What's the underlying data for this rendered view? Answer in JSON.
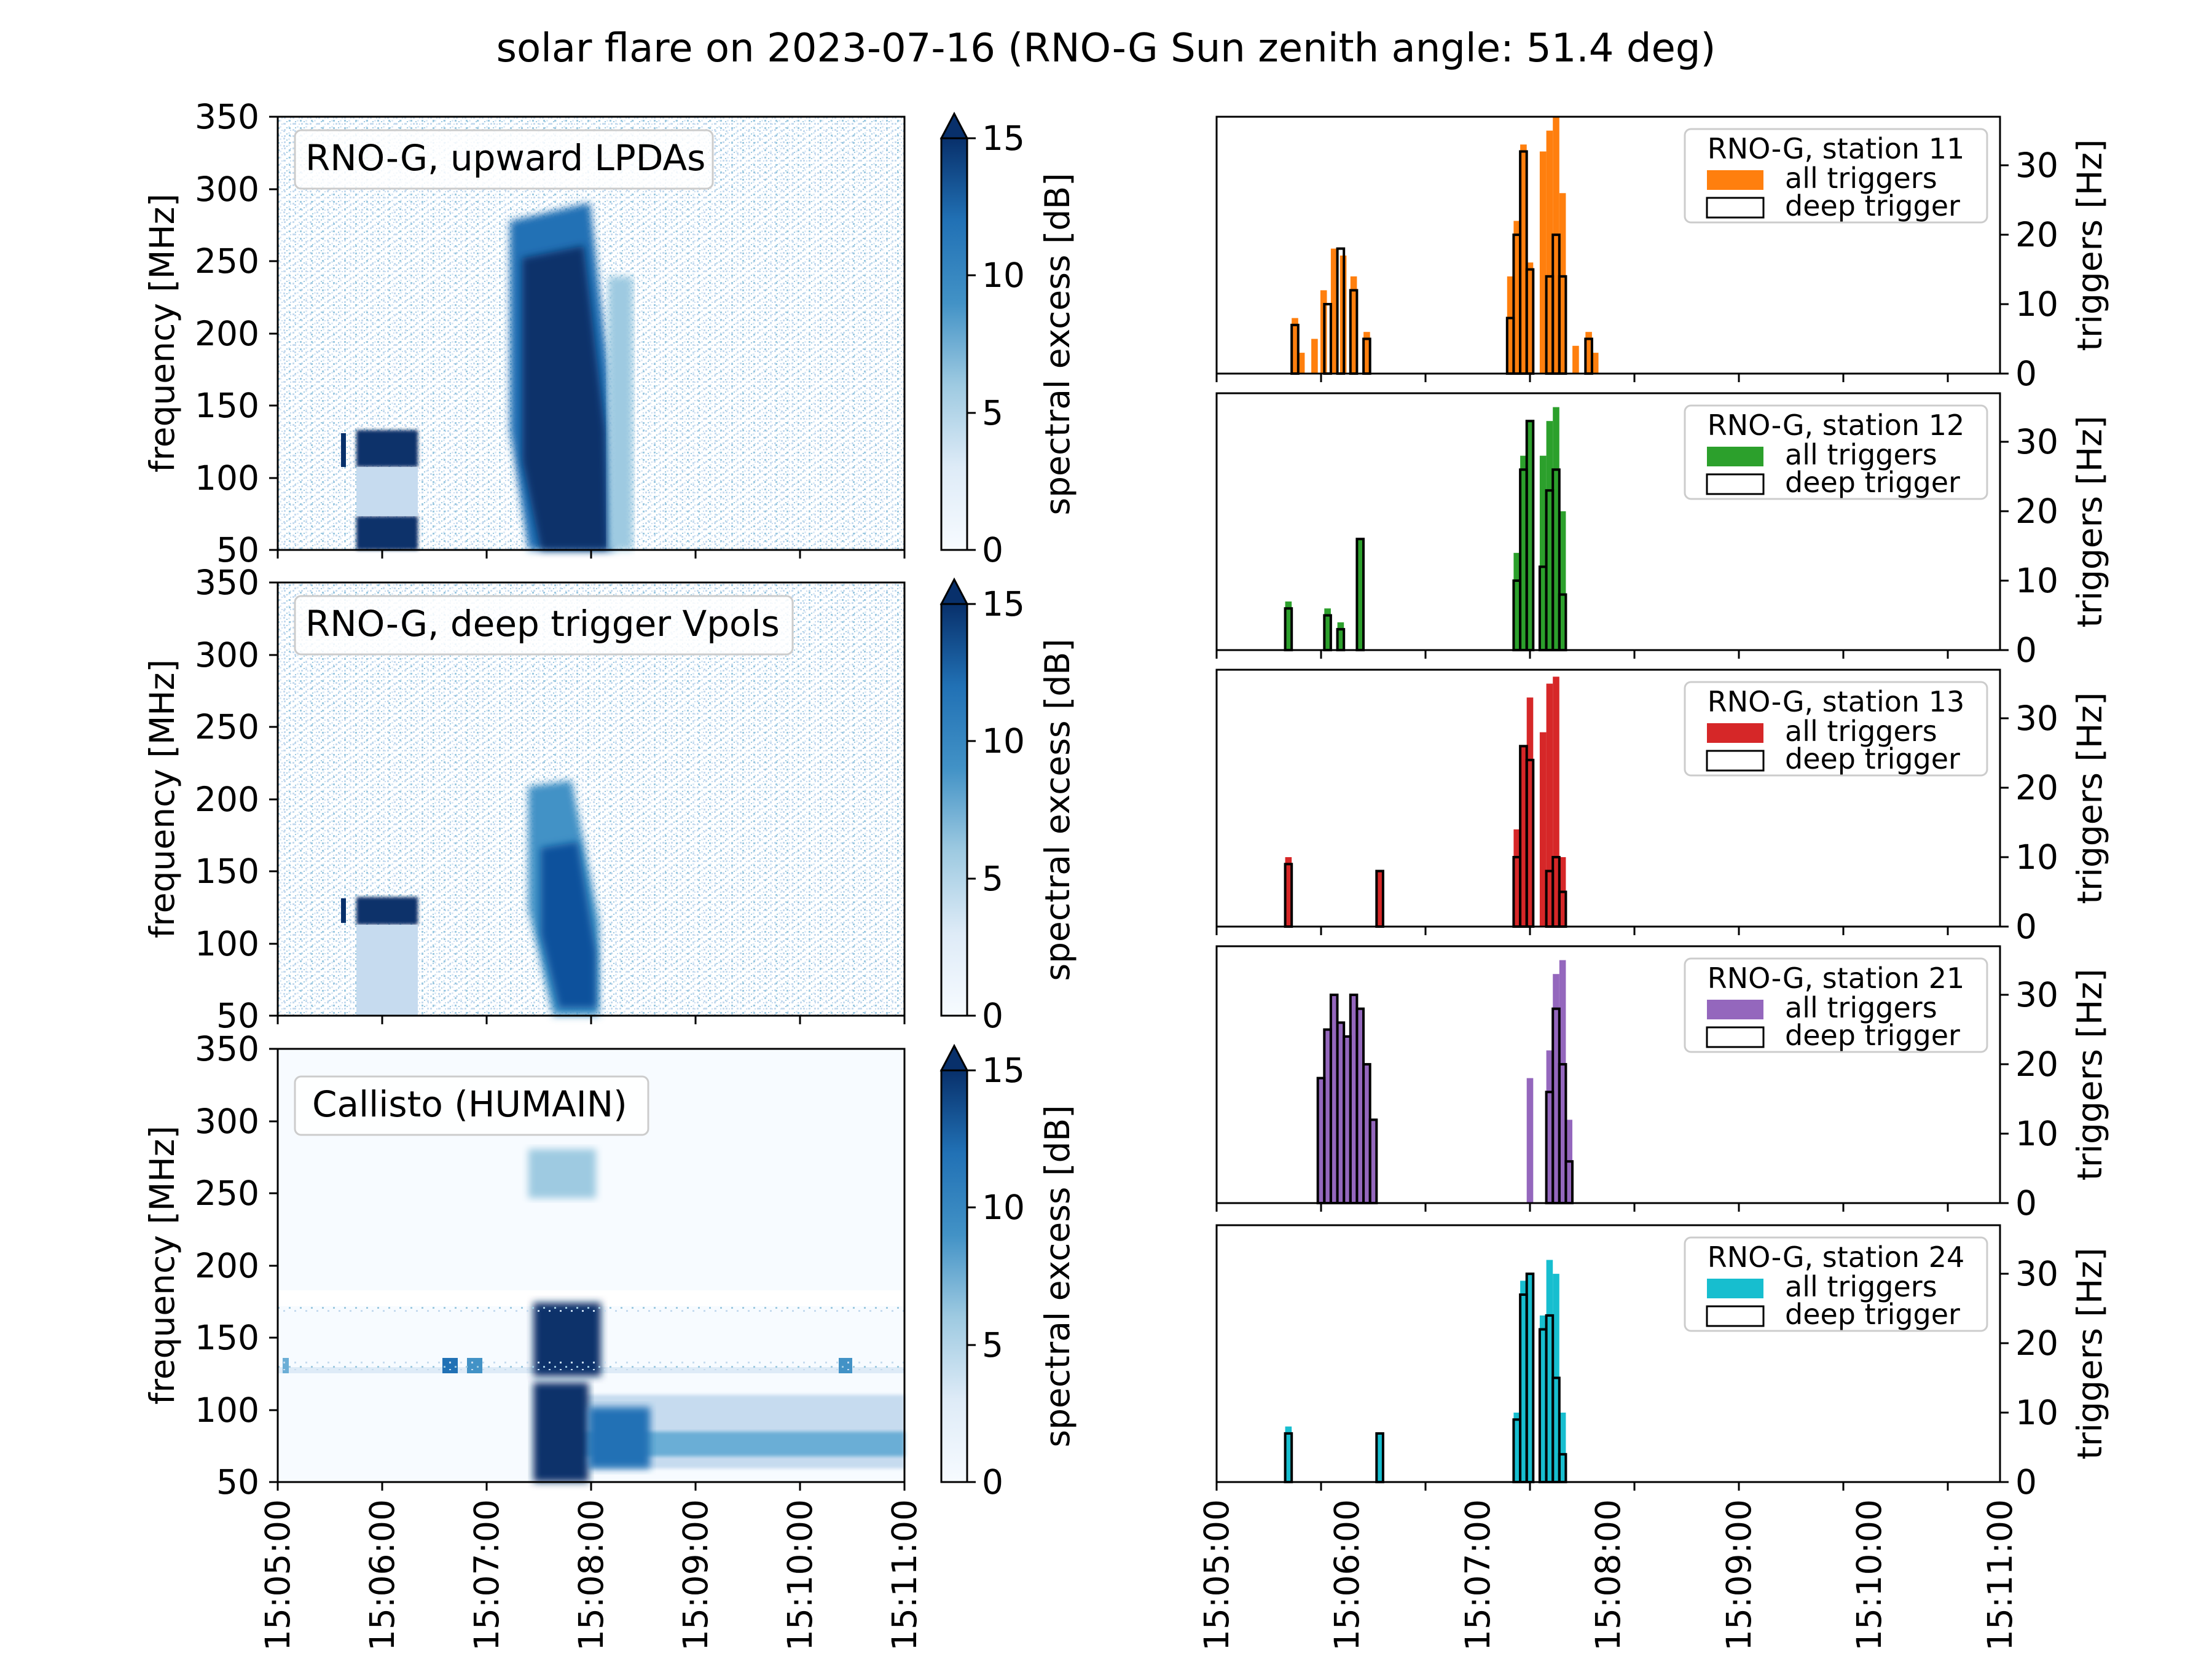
{
  "title": "solar flare on 2023-07-16 (RNO-G Sun zenith angle: 51.4 deg)",
  "colors": {
    "cmap_low": "#f7fbff",
    "cmap_high": "#08306b",
    "station_11": "#ff7f0e",
    "station_12": "#2ca02c",
    "station_13": "#d62728",
    "station_21": "#9467bd",
    "station_24": "#17becf",
    "deep": "#000000"
  },
  "chart_data": [
    {
      "type": "heatmap",
      "label": "RNO-G, upward LPDAs",
      "ylabel": "frequency [MHz]",
      "ylim": [
        50,
        350
      ],
      "y_ticks": [
        "50",
        "100",
        "150",
        "200",
        "250",
        "300",
        "350"
      ],
      "colorbar_label": "spectral excess [dB]",
      "colorbar_ticks": [
        "0",
        "5",
        "10",
        "15"
      ],
      "clim": [
        0,
        15
      ],
      "features": [
        {
          "time": "15:05:35-15:06:20",
          "freq_mhz": [
            110,
            135
          ],
          "excess_db": 15
        },
        {
          "time": "15:05:35-15:06:20",
          "freq_mhz": [
            50,
            70
          ],
          "excess_db": 14
        },
        {
          "time": "15:07:10-15:08:10",
          "freq_mhz": [
            50,
            280
          ],
          "excess_db": 15
        }
      ]
    },
    {
      "type": "heatmap",
      "label": "RNO-G, deep trigger Vpols",
      "ylabel": "frequency [MHz]",
      "ylim": [
        50,
        350
      ],
      "y_ticks": [
        "50",
        "100",
        "150",
        "200",
        "250",
        "300",
        "350"
      ],
      "colorbar_label": "spectral excess [dB]",
      "colorbar_ticks": [
        "0",
        "5",
        "10",
        "15"
      ],
      "clim": [
        0,
        15
      ],
      "features": [
        {
          "time": "15:05:35-15:06:20",
          "freq_mhz": [
            115,
            132
          ],
          "excess_db": 15
        },
        {
          "time": "15:07:15-15:08:05",
          "freq_mhz": [
            55,
            200
          ],
          "excess_db": 12
        }
      ]
    },
    {
      "type": "heatmap",
      "label": "Callisto (HUMAIN)",
      "ylabel": "frequency [MHz]",
      "ylim": [
        50,
        350
      ],
      "y_ticks": [
        "50",
        "100",
        "150",
        "200",
        "250",
        "300",
        "350"
      ],
      "colorbar_label": "spectral excess [dB]",
      "colorbar_ticks": [
        "0",
        "5",
        "10",
        "15"
      ],
      "clim": [
        0,
        15
      ],
      "x_ticks": [
        "15:05:00",
        "15:06:00",
        "15:07:00",
        "15:08:00",
        "15:09:00",
        "15:10:00",
        "15:11:00"
      ],
      "features": [
        {
          "time": "15:07:25-15:11:00",
          "freq_mhz": [
            55,
            110
          ],
          "excess_db": 15
        },
        {
          "time": "15:07:20-15:08:10",
          "freq_mhz": [
            120,
            170
          ],
          "excess_db": 15
        },
        {
          "time": "15:07:25-15:07:55",
          "freq_mhz": [
            240,
            275
          ],
          "excess_db": 6
        }
      ]
    },
    {
      "type": "bar",
      "label": "RNO-G, station 11",
      "series": [
        {
          "name": "all triggers",
          "color": "#ff7f0e",
          "bins": [
            [
              5.6,
              8
            ],
            [
              5.65,
              3
            ],
            [
              5.75,
              5
            ],
            [
              5.82,
              12
            ],
            [
              5.9,
              18
            ],
            [
              5.97,
              17
            ],
            [
              6.05,
              14
            ],
            [
              6.15,
              6
            ],
            [
              7.25,
              14
            ],
            [
              7.3,
              22
            ],
            [
              7.35,
              33
            ],
            [
              7.4,
              16
            ],
            [
              7.5,
              32
            ],
            [
              7.55,
              35
            ],
            [
              7.6,
              37
            ],
            [
              7.65,
              26
            ],
            [
              7.75,
              4
            ],
            [
              7.85,
              6
            ],
            [
              7.9,
              3
            ]
          ]
        },
        {
          "name": "deep trigger",
          "color": "#000000",
          "bins": [
            [
              5.6,
              7
            ],
            [
              5.85,
              10
            ],
            [
              5.95,
              18
            ],
            [
              6.05,
              12
            ],
            [
              6.15,
              5
            ],
            [
              7.25,
              8
            ],
            [
              7.3,
              20
            ],
            [
              7.35,
              32
            ],
            [
              7.4,
              15
            ],
            [
              7.55,
              14
            ],
            [
              7.6,
              20
            ],
            [
              7.65,
              14
            ],
            [
              7.85,
              5
            ]
          ]
        }
      ],
      "x_ticks": [],
      "ylabel": "triggers [Hz]",
      "y_ticks": [
        "0",
        "10",
        "20",
        "30"
      ],
      "ylim": [
        0,
        37
      ]
    },
    {
      "type": "bar",
      "label": "RNO-G, station 12",
      "series": [
        {
          "name": "all triggers",
          "color": "#2ca02c",
          "bins": [
            [
              5.55,
              7
            ],
            [
              5.85,
              6
            ],
            [
              5.95,
              4
            ],
            [
              6.1,
              16
            ],
            [
              7.3,
              14
            ],
            [
              7.35,
              28
            ],
            [
              7.4,
              33
            ],
            [
              7.5,
              28
            ],
            [
              7.55,
              33
            ],
            [
              7.6,
              35
            ],
            [
              7.65,
              20
            ]
          ]
        },
        {
          "name": "deep trigger",
          "color": "#000000",
          "bins": [
            [
              5.55,
              6
            ],
            [
              5.85,
              5
            ],
            [
              5.95,
              3
            ],
            [
              6.1,
              16
            ],
            [
              7.3,
              10
            ],
            [
              7.35,
              26
            ],
            [
              7.4,
              33
            ],
            [
              7.5,
              12
            ],
            [
              7.55,
              23
            ],
            [
              7.6,
              26
            ],
            [
              7.65,
              8
            ]
          ]
        }
      ],
      "x_ticks": [],
      "ylabel": "triggers [Hz]",
      "y_ticks": [
        "0",
        "10",
        "20",
        "30"
      ],
      "ylim": [
        0,
        37
      ]
    },
    {
      "type": "bar",
      "label": "RNO-G, station 13",
      "series": [
        {
          "name": "all triggers",
          "color": "#d62728",
          "bins": [
            [
              5.55,
              10
            ],
            [
              6.25,
              8
            ],
            [
              7.3,
              14
            ],
            [
              7.35,
              26
            ],
            [
              7.4,
              33
            ],
            [
              7.5,
              28
            ],
            [
              7.55,
              35
            ],
            [
              7.6,
              36
            ],
            [
              7.65,
              10
            ]
          ]
        },
        {
          "name": "deep trigger",
          "color": "#000000",
          "bins": [
            [
              5.55,
              9
            ],
            [
              6.25,
              8
            ],
            [
              7.3,
              10
            ],
            [
              7.35,
              26
            ],
            [
              7.4,
              24
            ],
            [
              7.55,
              8
            ],
            [
              7.6,
              10
            ],
            [
              7.65,
              5
            ]
          ]
        }
      ],
      "x_ticks": [],
      "ylabel": "triggers [Hz]",
      "y_ticks": [
        "0",
        "10",
        "20",
        "30"
      ],
      "ylim": [
        0,
        37
      ]
    },
    {
      "type": "bar",
      "label": "RNO-G, station 21",
      "series": [
        {
          "name": "all triggers",
          "color": "#9467bd",
          "bins": [
            [
              5.8,
              18
            ],
            [
              5.85,
              25
            ],
            [
              5.9,
              30
            ],
            [
              5.95,
              26
            ],
            [
              6.0,
              24
            ],
            [
              6.05,
              30
            ],
            [
              6.1,
              28
            ],
            [
              6.15,
              20
            ],
            [
              6.2,
              12
            ],
            [
              7.4,
              18
            ],
            [
              7.55,
              22
            ],
            [
              7.6,
              33
            ],
            [
              7.65,
              35
            ],
            [
              7.7,
              12
            ]
          ]
        },
        {
          "name": "deep trigger",
          "color": "#000000",
          "bins": [
            [
              5.8,
              18
            ],
            [
              5.85,
              25
            ],
            [
              5.9,
              30
            ],
            [
              5.95,
              26
            ],
            [
              6.0,
              24
            ],
            [
              6.05,
              30
            ],
            [
              6.1,
              28
            ],
            [
              6.15,
              20
            ],
            [
              6.2,
              12
            ],
            [
              7.55,
              16
            ],
            [
              7.6,
              28
            ],
            [
              7.65,
              20
            ],
            [
              7.7,
              6
            ]
          ]
        }
      ],
      "x_ticks": [],
      "ylabel": "triggers [Hz]",
      "y_ticks": [
        "0",
        "10",
        "20",
        "30"
      ],
      "ylim": [
        0,
        37
      ]
    },
    {
      "type": "bar",
      "label": "RNO-G, station 24",
      "series": [
        {
          "name": "all triggers",
          "color": "#17becf",
          "bins": [
            [
              5.55,
              8
            ],
            [
              6.25,
              7
            ],
            [
              7.3,
              10
            ],
            [
              7.35,
              29
            ],
            [
              7.4,
              30
            ],
            [
              7.5,
              24
            ],
            [
              7.55,
              32
            ],
            [
              7.6,
              30
            ],
            [
              7.65,
              10
            ]
          ]
        },
        {
          "name": "deep trigger",
          "color": "#000000",
          "bins": [
            [
              5.55,
              7
            ],
            [
              6.25,
              7
            ],
            [
              7.3,
              9
            ],
            [
              7.35,
              27
            ],
            [
              7.4,
              30
            ],
            [
              7.5,
              22
            ],
            [
              7.55,
              24
            ],
            [
              7.6,
              15
            ],
            [
              7.65,
              4
            ]
          ]
        }
      ],
      "x_ticks": [
        "15:05:00",
        "15:06:00",
        "15:07:00",
        "15:08:00",
        "15:09:00",
        "15:10:00",
        "15:11:00"
      ],
      "ylabel": "triggers [Hz]",
      "y_ticks": [
        "0",
        "10",
        "20",
        "30"
      ],
      "ylim": [
        0,
        37
      ]
    }
  ]
}
